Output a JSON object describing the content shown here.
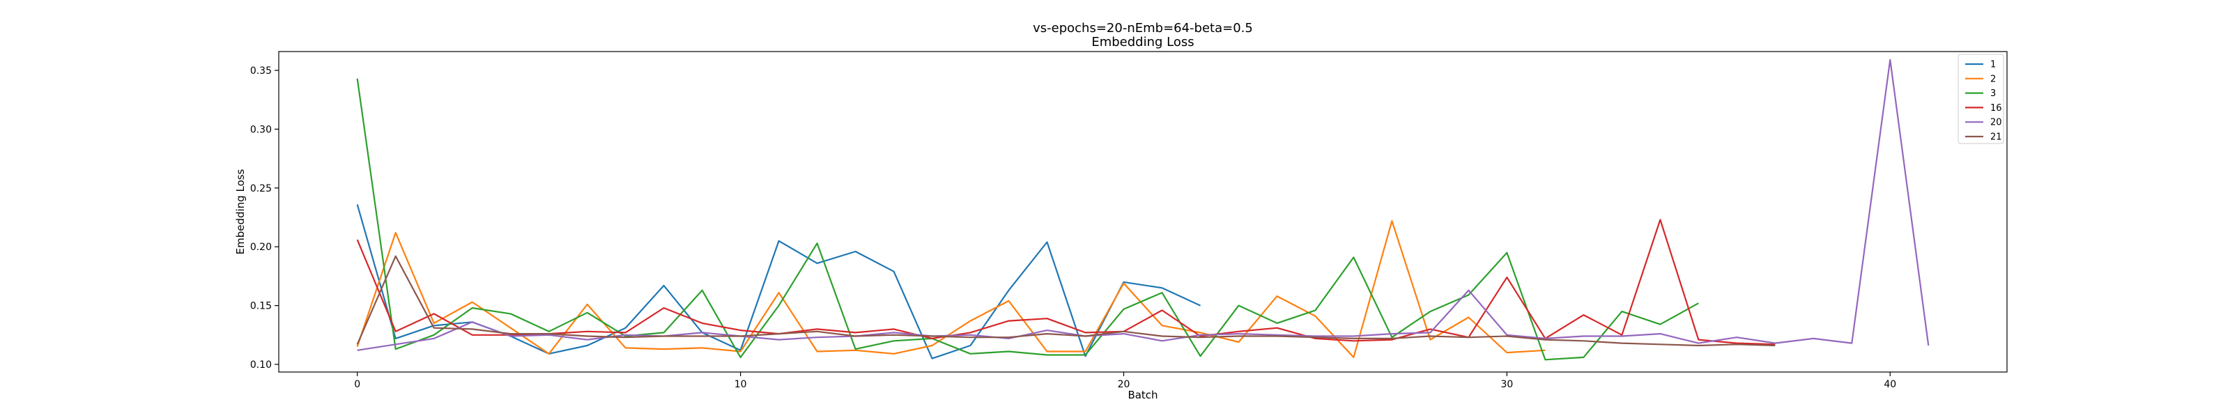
{
  "chart_data": {
    "type": "line",
    "title": "vs-epochs=20-nEmb=64-beta=0.5",
    "subtitle": "Embedding Loss",
    "xlabel": "Batch",
    "ylabel": "Embedding Loss",
    "xlim": [
      -2.05,
      43.05
    ],
    "ylim": [
      0.0935,
      0.366
    ],
    "xticks": [
      0,
      10,
      20,
      30,
      40
    ],
    "yticks": [
      0.1,
      0.15,
      0.2,
      0.25,
      0.3,
      0.35
    ],
    "grid": false,
    "legend_position": "top-right",
    "series": [
      {
        "name": "1",
        "color": "#1f77b4",
        "values": [
          0.236,
          0.122,
          0.133,
          0.136,
          0.124,
          0.109,
          0.116,
          0.131,
          0.167,
          0.127,
          0.112,
          0.205,
          0.186,
          0.196,
          0.179,
          0.105,
          0.116,
          0.163,
          0.204,
          0.107,
          0.17,
          0.165,
          0.15
        ]
      },
      {
        "name": "2",
        "color": "#ff7f0e",
        "values": [
          0.115,
          0.212,
          0.135,
          0.153,
          0.131,
          0.109,
          0.151,
          0.114,
          0.113,
          0.114,
          0.111,
          0.161,
          0.111,
          0.112,
          0.109,
          0.116,
          0.137,
          0.154,
          0.111,
          0.111,
          0.169,
          0.133,
          0.127,
          0.119,
          0.158,
          0.141,
          0.106,
          0.222,
          0.121,
          0.14,
          0.11,
          0.112
        ]
      },
      {
        "name": "3",
        "color": "#2ca02c",
        "values": [
          0.343,
          0.113,
          0.125,
          0.148,
          0.143,
          0.128,
          0.144,
          0.124,
          0.127,
          0.163,
          0.106,
          0.15,
          0.203,
          0.113,
          0.12,
          0.122,
          0.109,
          0.111,
          0.108,
          0.108,
          0.147,
          0.161,
          0.107,
          0.15,
          0.135,
          0.146,
          0.191,
          0.123,
          0.145,
          0.159,
          0.195,
          0.104,
          0.106,
          0.145,
          0.134,
          0.152
        ]
      },
      {
        "name": "16",
        "color": "#d62728",
        "values": [
          0.206,
          0.128,
          0.143,
          0.125,
          0.125,
          0.126,
          0.128,
          0.127,
          0.148,
          0.135,
          0.129,
          0.126,
          0.13,
          0.127,
          0.13,
          0.122,
          0.127,
          0.137,
          0.139,
          0.127,
          0.128,
          0.146,
          0.124,
          0.128,
          0.131,
          0.122,
          0.12,
          0.121,
          0.13,
          0.123,
          0.174,
          0.122,
          0.142,
          0.125,
          0.223,
          0.121,
          0.118,
          0.117
        ]
      },
      {
        "name": "20",
        "color": "#9467bd",
        "values": [
          0.112,
          0.117,
          0.122,
          0.136,
          0.124,
          0.125,
          0.121,
          0.125,
          0.124,
          0.127,
          0.124,
          0.121,
          0.123,
          0.124,
          0.127,
          0.124,
          0.125,
          0.122,
          0.129,
          0.124,
          0.126,
          0.12,
          0.125,
          0.126,
          0.125,
          0.124,
          0.124,
          0.126,
          0.127,
          0.163,
          0.125,
          0.122,
          0.124,
          0.124,
          0.126,
          0.118,
          0.123,
          0.118,
          0.122,
          0.118,
          0.359,
          0.116
        ]
      },
      {
        "name": "21",
        "color": "#8c564b",
        "values": [
          0.117,
          0.192,
          0.131,
          0.13,
          0.126,
          0.126,
          0.124,
          0.123,
          0.124,
          0.124,
          0.124,
          0.126,
          0.128,
          0.124,
          0.125,
          0.124,
          0.123,
          0.123,
          0.126,
          0.124,
          0.128,
          0.124,
          0.123,
          0.124,
          0.124,
          0.123,
          0.122,
          0.122,
          0.124,
          0.123,
          0.124,
          0.121,
          0.12,
          0.118,
          0.117,
          0.116,
          0.117,
          0.116
        ]
      }
    ]
  }
}
